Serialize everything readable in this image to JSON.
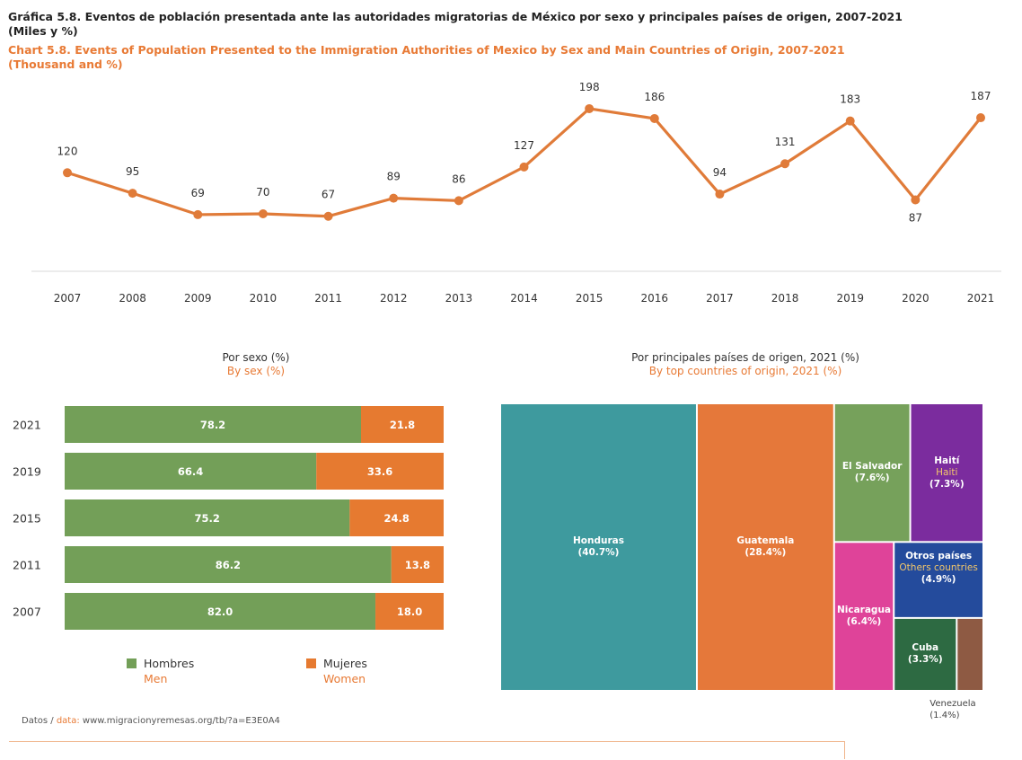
{
  "header": {
    "title_es": "Gráfica 5.8. Eventos de población presentada ante las autoridades migratorias de México por sexo y principales países de origen, 2007-2021",
    "units_es": "(Miles y %)",
    "title_en": "Chart 5.8. Events of Population Presented to the Immigration Authorities of Mexico by Sex and Main Countries of Origin, 2007-2021",
    "units_en": "(Thousand and %)"
  },
  "colors": {
    "line": "#e07b39",
    "men": "#739f58",
    "women": "#e67a30",
    "accent_text": "#e87a35"
  },
  "chart_data": [
    {
      "type": "line",
      "x": [
        "2007",
        "2008",
        "2009",
        "2010",
        "2011",
        "2012",
        "2013",
        "2014",
        "2015",
        "2016",
        "2017",
        "2018",
        "2019",
        "2020",
        "2021"
      ],
      "values": [
        120,
        95,
        69,
        70,
        67,
        89,
        86,
        127,
        198,
        186,
        94,
        131,
        183,
        87,
        187
      ],
      "ylim": [
        0,
        210
      ],
      "grid": false
    },
    {
      "type": "bar",
      "orientation": "horizontal-stacked",
      "title_es": "Por sexo (%)",
      "title_en": "By sex (%)",
      "categories": [
        "2021",
        "2019",
        "2015",
        "2011",
        "2007"
      ],
      "series": [
        {
          "name": "Hombres",
          "name_en": "Men",
          "values": [
            78.2,
            66.4,
            75.2,
            86.2,
            82.0
          ],
          "labels": [
            "78.2",
            "66.4",
            "75.2",
            "86.2",
            "82.0"
          ]
        },
        {
          "name": "Mujeres",
          "name_en": "Women",
          "values": [
            21.8,
            33.6,
            24.8,
            13.8,
            18.0
          ],
          "labels": [
            "21.8",
            "33.6",
            "24.8",
            "13.8",
            "18.0"
          ]
        }
      ],
      "xlim": [
        0,
        100
      ],
      "legend": "bottom"
    },
    {
      "type": "treemap",
      "title_es": "Por principales países de origen, 2021 (%)",
      "title_en": "By top countries of origin, 2021 (%)",
      "items": [
        {
          "name": "Honduras",
          "pct": "(40.7%)",
          "value": 40.7,
          "color": "#3e9a9e"
        },
        {
          "name": "Guatemala",
          "pct": "(28.4%)",
          "value": 28.4,
          "color": "#e5783a"
        },
        {
          "name": "El Salvador",
          "pct": "(7.6%)",
          "value": 7.6,
          "color": "#76a15b"
        },
        {
          "name": "Haití",
          "name_en": "Haiti",
          "pct": "(7.3%)",
          "value": 7.3,
          "color": "#7b2c9e"
        },
        {
          "name": "Nicaragua",
          "pct": "(6.4%)",
          "value": 6.4,
          "color": "#df4399"
        },
        {
          "name": "Otros países",
          "name_en": "Others countries",
          "pct": "(4.9%)",
          "value": 4.9,
          "color": "#244b9c"
        },
        {
          "name": "Cuba",
          "pct": "(3.3%)",
          "value": 3.3,
          "color": "#2d6a42"
        },
        {
          "name": "Venezuela",
          "pct": "(1.4%)",
          "value": 1.4,
          "color": "#8e5a43"
        }
      ]
    }
  ],
  "footer": {
    "label_es": "Datos /",
    "label_en": "data:",
    "url": "www.migracionyremesas.org/tb/?a=E3E0A4"
  }
}
